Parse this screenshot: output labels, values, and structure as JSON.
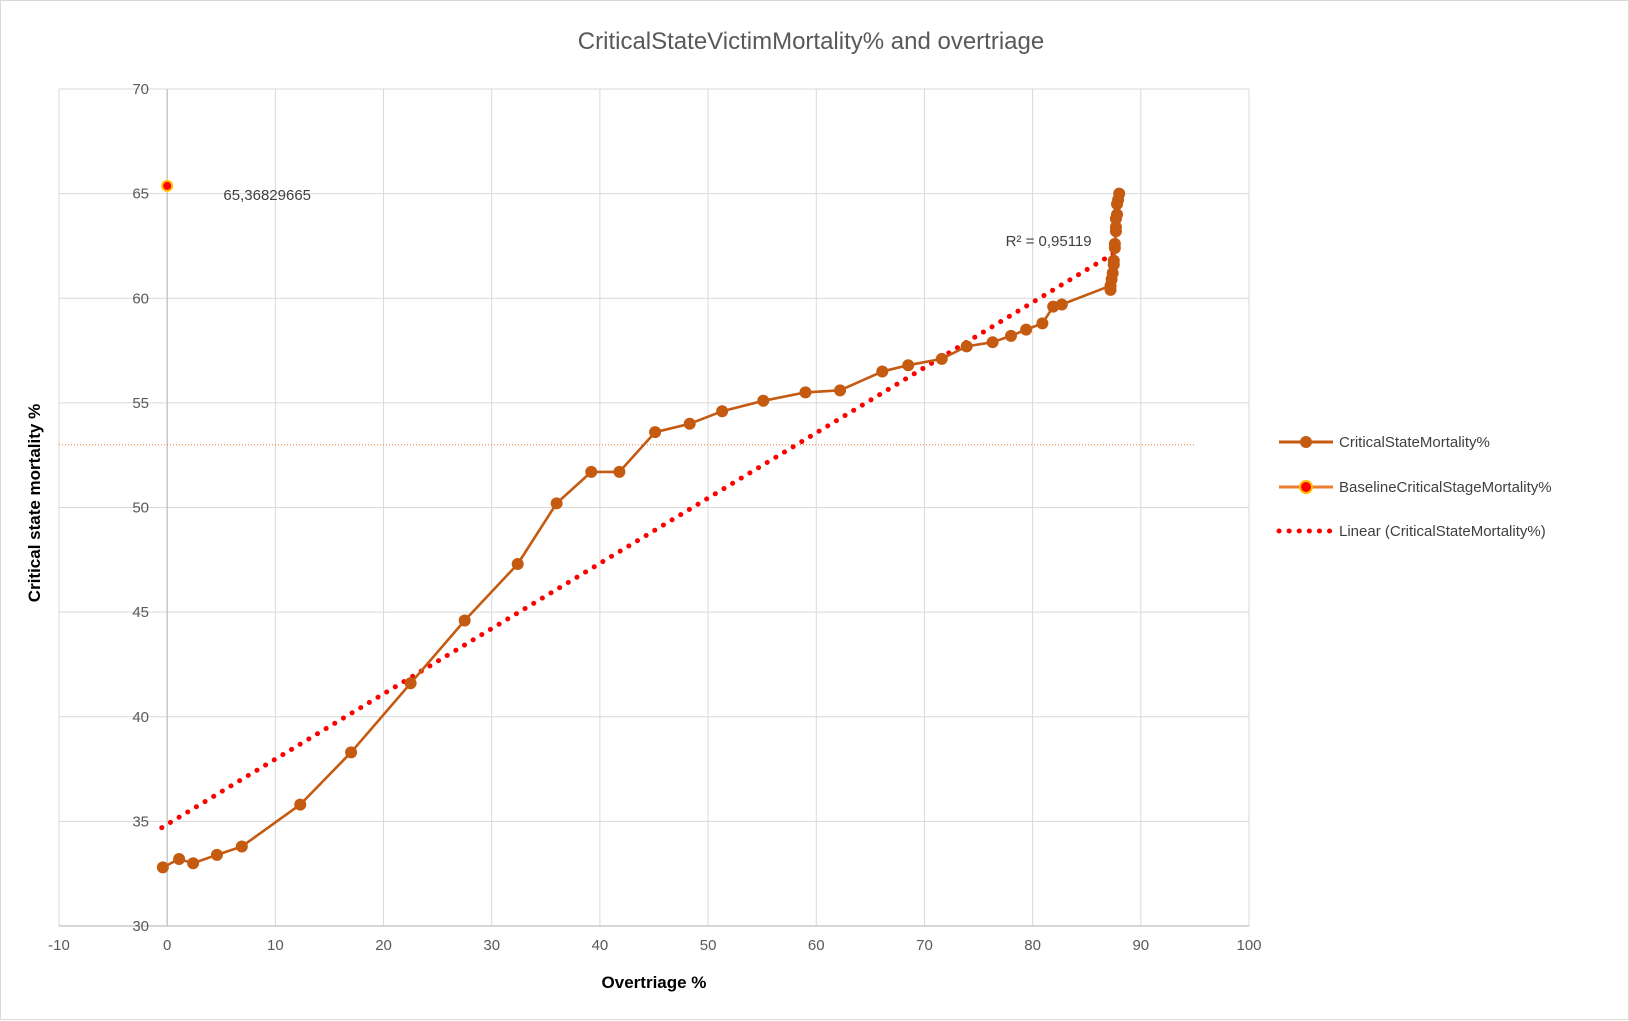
{
  "chart_data": {
    "type": "scatter",
    "title": "CriticalStateVictimMortality% and overtriage",
    "xlabel": "Overtriage %",
    "ylabel": "Critical state mortality %",
    "xlim": [
      -10,
      100
    ],
    "ylim": [
      30,
      70
    ],
    "x_ticks": [
      "-10",
      "0",
      "10",
      "20",
      "30",
      "40",
      "50",
      "60",
      "70",
      "80",
      "90",
      "100"
    ],
    "y_ticks": [
      "30",
      "35",
      "40",
      "45",
      "50",
      "55",
      "60",
      "65",
      "70"
    ],
    "grid": true,
    "legend_position": "right",
    "series": [
      {
        "name": "CriticalStateMortality%",
        "style": "line-with-markers",
        "color": "#c55a11",
        "points": [
          [
            -0.4,
            32.8
          ],
          [
            1.1,
            33.2
          ],
          [
            2.4,
            33.0
          ],
          [
            4.6,
            33.4
          ],
          [
            6.9,
            33.8
          ],
          [
            12.3,
            35.8
          ],
          [
            17.0,
            38.3
          ],
          [
            22.5,
            41.6
          ],
          [
            27.5,
            44.6
          ],
          [
            32.4,
            47.3
          ],
          [
            36.0,
            50.2
          ],
          [
            39.2,
            51.7
          ],
          [
            41.8,
            51.7
          ],
          [
            45.1,
            53.6
          ],
          [
            48.3,
            54.0
          ],
          [
            51.3,
            54.6
          ],
          [
            55.1,
            55.1
          ],
          [
            59.0,
            55.5
          ],
          [
            62.2,
            55.6
          ],
          [
            66.1,
            56.5
          ],
          [
            68.5,
            56.8
          ],
          [
            71.6,
            57.1
          ],
          [
            73.9,
            57.7
          ],
          [
            76.3,
            57.9
          ],
          [
            78.0,
            58.2
          ],
          [
            79.4,
            58.5
          ],
          [
            80.9,
            58.8
          ],
          [
            81.9,
            59.6
          ],
          [
            82.7,
            59.7
          ],
          [
            87.2,
            60.6
          ],
          [
            87.2,
            60.4
          ],
          [
            87.3,
            60.9
          ],
          [
            87.4,
            61.2
          ],
          [
            87.5,
            61.6
          ],
          [
            87.5,
            61.8
          ],
          [
            87.6,
            62.4
          ],
          [
            87.6,
            62.6
          ],
          [
            87.7,
            63.2
          ],
          [
            87.7,
            63.4
          ],
          [
            87.7,
            63.8
          ],
          [
            87.8,
            64.0
          ],
          [
            87.8,
            64.5
          ],
          [
            87.9,
            64.7
          ],
          [
            88.0,
            65.0
          ]
        ]
      },
      {
        "name": "BaselineCriticalStageMortality%",
        "style": "marker-and-dotted-line",
        "color": "#ed7d31",
        "marker_fill": "#ff0000",
        "points": [
          [
            0,
            65.36829665
          ]
        ],
        "reference_y": 53.0,
        "reference_x_range": [
          -10,
          95
        ]
      },
      {
        "name": "Linear (CriticalStateMortality%)",
        "style": "dotted-trendline",
        "color": "#ff0000",
        "start": [
          -0.5,
          34.7
        ],
        "end": [
          88.0,
          62.3
        ]
      }
    ],
    "annotations": [
      {
        "text": "65,36829665",
        "x": 5.2,
        "y": 64.7
      },
      {
        "text": "R² = 0,95119",
        "x": 77.5,
        "y": 62.5
      }
    ]
  }
}
